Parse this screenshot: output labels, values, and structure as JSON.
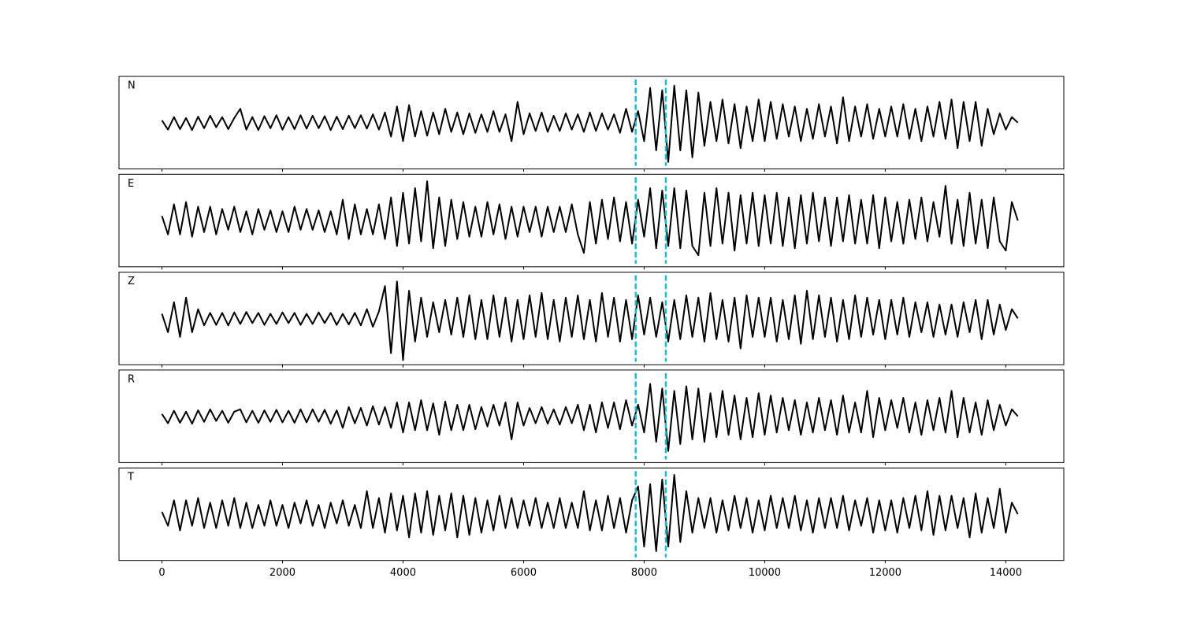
{
  "chart_data": {
    "type": "line",
    "x": [
      0,
      100,
      200,
      300,
      400,
      500,
      600,
      700,
      800,
      900,
      1000,
      1100,
      1200,
      1300,
      1400,
      1500,
      1600,
      1700,
      1800,
      1900,
      2000,
      2100,
      2200,
      2300,
      2400,
      2500,
      2600,
      2700,
      2800,
      2900,
      3000,
      3100,
      3200,
      3300,
      3400,
      3500,
      3600,
      3700,
      3800,
      3900,
      4000,
      4100,
      4200,
      4300,
      4400,
      4500,
      4600,
      4700,
      4800,
      4900,
      5000,
      5100,
      5200,
      5300,
      5400,
      5500,
      5600,
      5700,
      5800,
      5900,
      6000,
      6100,
      6200,
      6300,
      6400,
      6500,
      6600,
      6700,
      6800,
      6900,
      7000,
      7100,
      7200,
      7300,
      7400,
      7500,
      7600,
      7700,
      7800,
      7900,
      8000,
      8100,
      8200,
      8300,
      8400,
      8500,
      8600,
      8700,
      8800,
      8900,
      9000,
      9100,
      9200,
      9300,
      9400,
      9500,
      9600,
      9700,
      9800,
      9900,
      10000,
      10100,
      10200,
      10300,
      10400,
      10500,
      10600,
      10700,
      10800,
      10900,
      11000,
      11100,
      11200,
      11300,
      11400,
      11500,
      11600,
      11700,
      11800,
      11900,
      12000,
      12100,
      12200,
      12300,
      12400,
      12500,
      12600,
      12700,
      12800,
      12900,
      13000,
      13100,
      13200,
      13300,
      13400,
      13500,
      13600,
      13700,
      13800,
      13900,
      14000,
      14100,
      14200
    ],
    "series": [
      {
        "name": "N",
        "color": "#000000",
        "values": [
          0.05,
          -0.15,
          0.12,
          -0.14,
          0.1,
          -0.16,
          0.13,
          -0.12,
          0.15,
          -0.1,
          0.12,
          -0.14,
          0.1,
          0.3,
          -0.15,
          0.12,
          -0.16,
          0.14,
          -0.12,
          0.16,
          -0.15,
          0.12,
          -0.14,
          0.16,
          -0.13,
          0.15,
          -0.12,
          0.14,
          -0.16,
          0.13,
          -0.14,
          0.15,
          -0.12,
          0.16,
          -0.13,
          0.18,
          -0.15,
          0.22,
          -0.3,
          0.35,
          -0.4,
          0.38,
          -0.3,
          0.25,
          -0.28,
          0.22,
          -0.25,
          0.3,
          -0.2,
          0.22,
          -0.25,
          0.2,
          -0.22,
          0.18,
          -0.2,
          0.25,
          -0.2,
          0.18,
          -0.4,
          0.45,
          -0.25,
          0.2,
          -0.18,
          0.22,
          -0.2,
          0.15,
          -0.18,
          0.2,
          -0.15,
          0.18,
          -0.2,
          0.22,
          -0.18,
          0.2,
          -0.15,
          0.18,
          -0.22,
          0.3,
          -0.2,
          0.25,
          -0.4,
          0.75,
          -0.6,
          0.7,
          -0.85,
          0.8,
          -0.6,
          0.7,
          -0.75,
          0.65,
          -0.5,
          0.45,
          -0.4,
          0.5,
          -0.45,
          0.4,
          -0.55,
          0.35,
          -0.4,
          0.5,
          -0.4,
          0.45,
          -0.35,
          0.4,
          -0.3,
          0.35,
          -0.4,
          0.3,
          -0.35,
          0.4,
          -0.3,
          0.35,
          -0.45,
          0.55,
          -0.4,
          0.35,
          -0.3,
          0.4,
          -0.35,
          0.3,
          -0.3,
          0.35,
          -0.3,
          0.4,
          -0.35,
          0.3,
          -0.4,
          0.35,
          -0.3,
          0.45,
          -0.35,
          0.5,
          -0.55,
          0.45,
          -0.4,
          0.45,
          -0.5,
          0.3,
          -0.25,
          0.2,
          -0.15,
          0.12,
          0.0
        ]
      },
      {
        "name": "E",
        "color": "#000000",
        "values": [
          0.1,
          -0.3,
          0.35,
          -0.3,
          0.4,
          -0.35,
          0.3,
          -0.25,
          0.3,
          -0.3,
          0.25,
          -0.2,
          0.3,
          -0.25,
          0.2,
          -0.3,
          0.25,
          -0.2,
          0.22,
          -0.25,
          0.2,
          -0.25,
          0.3,
          -0.2,
          0.25,
          -0.2,
          0.22,
          -0.25,
          0.2,
          -0.3,
          0.45,
          -0.4,
          0.35,
          -0.3,
          0.25,
          -0.3,
          0.35,
          -0.4,
          0.5,
          -0.55,
          0.6,
          -0.5,
          0.7,
          -0.45,
          0.85,
          -0.6,
          0.5,
          -0.55,
          0.45,
          -0.4,
          0.4,
          -0.35,
          0.3,
          -0.35,
          0.4,
          -0.3,
          0.35,
          -0.4,
          0.3,
          -0.35,
          0.3,
          -0.25,
          0.3,
          -0.35,
          0.3,
          -0.25,
          0.3,
          -0.25,
          0.35,
          -0.3,
          -0.7,
          0.4,
          -0.5,
          0.45,
          -0.4,
          0.5,
          -0.45,
          0.4,
          -0.5,
          0.45,
          -0.35,
          0.7,
          -0.6,
          0.65,
          -0.55,
          0.7,
          -0.6,
          0.65,
          -0.55,
          -0.75,
          0.6,
          -0.55,
          0.7,
          -0.5,
          0.6,
          -0.65,
          0.55,
          -0.5,
          0.6,
          -0.55,
          0.55,
          -0.5,
          0.6,
          -0.55,
          0.5,
          -0.6,
          0.55,
          -0.5,
          0.6,
          -0.45,
          0.5,
          -0.55,
          0.5,
          -0.45,
          0.55,
          -0.5,
          0.45,
          -0.5,
          0.55,
          -0.6,
          0.5,
          -0.45,
          0.4,
          -0.5,
          0.45,
          -0.4,
          0.5,
          -0.45,
          0.4,
          -0.35,
          0.75,
          -0.5,
          0.45,
          -0.55,
          0.6,
          -0.5,
          0.45,
          -0.6,
          0.5,
          -0.45,
          -0.65,
          0.4,
          0.0
        ]
      },
      {
        "name": "Z",
        "color": "#000000",
        "values": [
          0.1,
          -0.3,
          0.35,
          -0.4,
          0.45,
          -0.3,
          0.2,
          -0.15,
          0.12,
          -0.14,
          0.12,
          -0.15,
          0.13,
          -0.12,
          0.14,
          -0.1,
          0.12,
          -0.14,
          0.1,
          -0.12,
          0.13,
          -0.1,
          0.12,
          -0.14,
          0.1,
          -0.12,
          0.13,
          -0.1,
          0.12,
          -0.14,
          0.1,
          -0.13,
          0.12,
          -0.15,
          0.2,
          -0.18,
          0.15,
          0.7,
          -0.75,
          0.8,
          -0.9,
          0.6,
          -0.5,
          0.45,
          -0.4,
          0.35,
          -0.3,
          0.4,
          -0.35,
          0.45,
          -0.4,
          0.5,
          -0.45,
          0.4,
          -0.45,
          0.5,
          -0.4,
          0.45,
          -0.5,
          0.4,
          -0.45,
          0.5,
          -0.4,
          0.55,
          -0.45,
          0.4,
          -0.5,
          0.45,
          -0.4,
          0.5,
          -0.45,
          0.4,
          -0.5,
          0.55,
          -0.4,
          0.45,
          -0.5,
          0.4,
          -0.45,
          0.5,
          -0.35,
          0.45,
          -0.4,
          0.35,
          -0.5,
          0.4,
          -0.45,
          0.5,
          -0.4,
          0.45,
          -0.5,
          0.55,
          -0.45,
          0.4,
          -0.5,
          0.45,
          -0.65,
          0.5,
          -0.4,
          0.45,
          -0.4,
          0.45,
          -0.5,
          0.4,
          -0.45,
          0.5,
          -0.55,
          0.6,
          -0.45,
          0.5,
          -0.4,
          0.45,
          -0.5,
          0.4,
          -0.45,
          0.5,
          -0.4,
          0.45,
          -0.35,
          0.4,
          -0.45,
          0.4,
          -0.35,
          0.45,
          -0.4,
          0.35,
          -0.3,
          0.35,
          -0.4,
          0.3,
          -0.35,
          0.3,
          -0.4,
          0.35,
          -0.3,
          0.4,
          -0.45,
          0.4,
          -0.35,
          0.3,
          -0.25,
          0.2,
          0.0
        ]
      },
      {
        "name": "R",
        "color": "#000000",
        "values": [
          0.05,
          -0.15,
          0.12,
          -0.14,
          0.1,
          -0.16,
          0.13,
          -0.12,
          0.15,
          -0.1,
          0.12,
          -0.14,
          0.1,
          0.15,
          -0.13,
          0.12,
          -0.14,
          0.13,
          -0.12,
          0.14,
          -0.13,
          0.12,
          -0.14,
          0.15,
          -0.13,
          0.15,
          -0.12,
          0.14,
          -0.16,
          0.13,
          -0.25,
          0.2,
          -0.15,
          0.18,
          -0.2,
          0.22,
          -0.18,
          0.2,
          -0.25,
          0.3,
          -0.35,
          0.3,
          -0.3,
          0.35,
          -0.3,
          0.28,
          -0.4,
          0.32,
          -0.3,
          0.25,
          -0.3,
          0.25,
          -0.28,
          0.2,
          -0.22,
          0.25,
          -0.2,
          0.3,
          -0.5,
          0.3,
          -0.2,
          0.18,
          -0.15,
          0.2,
          -0.16,
          0.15,
          -0.18,
          0.2,
          -0.15,
          0.25,
          -0.3,
          0.25,
          -0.35,
          0.3,
          -0.25,
          0.3,
          -0.28,
          0.35,
          -0.2,
          0.25,
          -0.35,
          0.7,
          -0.55,
          0.6,
          -0.75,
          0.55,
          -0.6,
          0.65,
          -0.5,
          0.6,
          -0.55,
          0.5,
          -0.45,
          0.55,
          -0.4,
          0.45,
          -0.5,
          0.4,
          -0.45,
          0.5,
          -0.4,
          0.45,
          -0.35,
          0.4,
          -0.3,
          0.35,
          -0.4,
          0.3,
          -0.35,
          0.4,
          -0.3,
          0.35,
          -0.4,
          0.45,
          -0.35,
          0.3,
          -0.35,
          0.55,
          -0.45,
          0.4,
          -0.3,
          0.35,
          -0.25,
          0.4,
          -0.35,
          0.3,
          -0.4,
          0.35,
          -0.3,
          0.4,
          -0.35,
          0.55,
          -0.45,
          0.4,
          -0.35,
          0.3,
          -0.4,
          0.35,
          -0.3,
          0.25,
          -0.2,
          0.15,
          0.0
        ]
      },
      {
        "name": "T",
        "color": "#000000",
        "values": [
          0.05,
          -0.25,
          0.3,
          -0.35,
          0.3,
          -0.25,
          0.35,
          -0.3,
          0.25,
          -0.3,
          0.3,
          -0.25,
          0.35,
          -0.3,
          0.25,
          -0.3,
          0.2,
          -0.25,
          0.3,
          -0.25,
          0.2,
          -0.3,
          0.25,
          -0.2,
          0.3,
          -0.25,
          0.2,
          -0.3,
          0.25,
          -0.2,
          0.3,
          -0.25,
          0.2,
          -0.3,
          0.5,
          -0.3,
          0.35,
          -0.4,
          0.45,
          -0.35,
          0.4,
          -0.5,
          0.45,
          -0.4,
          0.5,
          -0.45,
          0.4,
          -0.35,
          0.45,
          -0.5,
          0.4,
          -0.45,
          0.35,
          -0.4,
          0.3,
          -0.35,
          0.4,
          -0.3,
          0.35,
          -0.3,
          0.3,
          -0.25,
          0.35,
          -0.3,
          0.25,
          -0.3,
          0.35,
          -0.3,
          0.25,
          -0.3,
          0.5,
          -0.35,
          0.3,
          -0.35,
          0.4,
          -0.3,
          0.35,
          -0.4,
          0.3,
          0.6,
          -0.7,
          0.65,
          -0.8,
          0.75,
          -0.7,
          0.85,
          -0.6,
          0.5,
          -0.4,
          0.35,
          -0.3,
          0.35,
          -0.4,
          0.3,
          -0.35,
          0.4,
          -0.3,
          0.35,
          -0.4,
          0.3,
          -0.35,
          0.4,
          -0.3,
          0.35,
          -0.3,
          0.4,
          -0.35,
          0.3,
          -0.4,
          0.35,
          -0.3,
          0.35,
          -0.3,
          0.4,
          -0.35,
          0.3,
          -0.25,
          0.35,
          -0.4,
          0.3,
          -0.35,
          0.3,
          -0.4,
          0.35,
          -0.3,
          0.4,
          -0.35,
          0.5,
          -0.45,
          0.4,
          -0.35,
          0.4,
          -0.3,
          0.35,
          -0.5,
          0.45,
          -0.4,
          0.35,
          -0.3,
          0.55,
          -0.4,
          0.25,
          0.0
        ]
      }
    ],
    "xlim": [
      -712.5,
      14962.5
    ],
    "xticks": [
      0,
      2000,
      4000,
      6000,
      8000,
      10000,
      12000,
      14000
    ],
    "ylim": [
      -1,
      1
    ],
    "vlines": [
      7860,
      8360
    ],
    "vline_color": "#17becf"
  }
}
